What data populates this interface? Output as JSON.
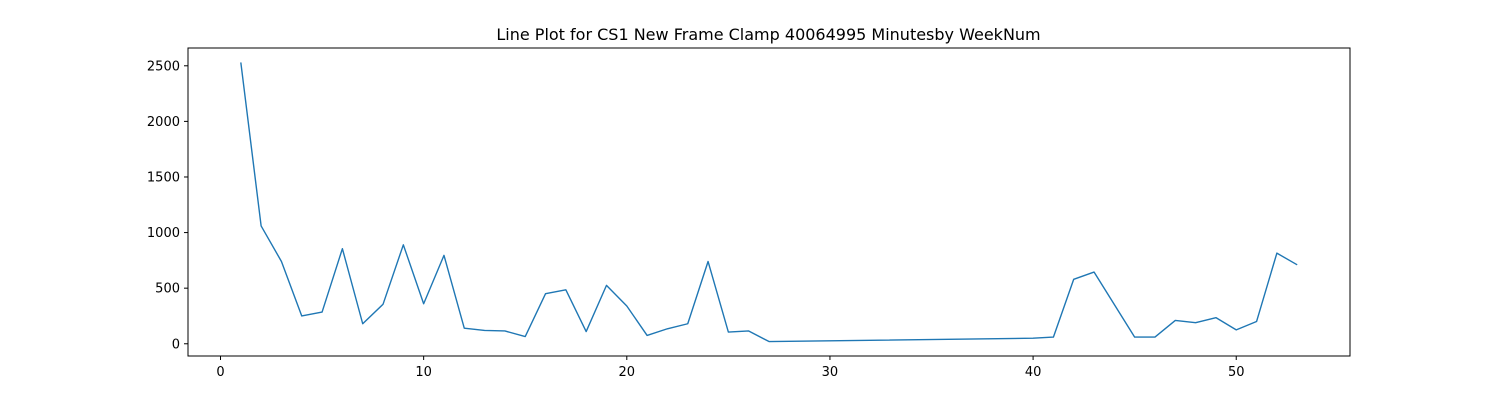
{
  "chart_data": {
    "type": "line",
    "title": "Line Plot for CS1 New Frame Clamp 40064995 Minutesby WeekNum",
    "xlabel": "",
    "ylabel": "",
    "xlim": [
      -1.6,
      55.6
    ],
    "ylim": [
      -110,
      2660
    ],
    "x_ticks": [
      0,
      10,
      20,
      30,
      40,
      50
    ],
    "x_tick_labels": [
      "0",
      "10",
      "20",
      "30",
      "40",
      "50"
    ],
    "y_ticks": [
      0,
      500,
      1000,
      1500,
      2000,
      2500
    ],
    "y_tick_labels": [
      "0",
      "500",
      "1000",
      "1500",
      "2000",
      "2500"
    ],
    "grid": false,
    "series": [
      {
        "name": "Minutes",
        "color": "#1f77b4",
        "x": [
          1,
          2,
          3,
          4,
          5,
          6,
          7,
          8,
          9,
          10,
          11,
          12,
          13,
          14,
          15,
          16,
          17,
          18,
          19,
          20,
          21,
          22,
          23,
          24,
          25,
          26,
          27,
          40,
          41,
          42,
          43,
          45,
          46,
          47,
          48,
          49,
          50,
          51,
          52,
          53
        ],
        "values": [
          2530,
          1060,
          740,
          250,
          285,
          855,
          180,
          355,
          890,
          360,
          795,
          140,
          120,
          115,
          65,
          450,
          485,
          110,
          525,
          340,
          75,
          135,
          180,
          740,
          105,
          115,
          20,
          50,
          60,
          580,
          645,
          60,
          60,
          210,
          190,
          235,
          125,
          200,
          815,
          710
        ]
      }
    ]
  }
}
